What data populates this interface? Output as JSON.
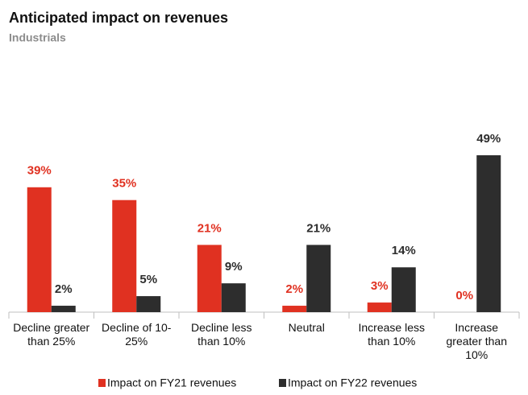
{
  "chart_data": {
    "type": "bar",
    "title": "Anticipated impact on revenues",
    "subtitle": "Industrials",
    "categories": [
      "Decline greater than 25%",
      "Decline of 10-25%",
      "Decline less than 10%",
      "Neutral",
      "Increase less than 10%",
      "Increase greater than 10%"
    ],
    "series": [
      {
        "name": "Impact on FY21 revenues",
        "color": "#e03121",
        "values": [
          39,
          35,
          21,
          2,
          3,
          0
        ],
        "value_labels": [
          "39%",
          "35%",
          "21%",
          "2%",
          "3%",
          "0%"
        ]
      },
      {
        "name": "Impact on FY22 revenues",
        "color": "#2d2d2d",
        "values": [
          2,
          5,
          9,
          21,
          14,
          49
        ],
        "value_labels": [
          "2%",
          "5%",
          "9%",
          "21%",
          "14%",
          "49%"
        ]
      }
    ]
  }
}
